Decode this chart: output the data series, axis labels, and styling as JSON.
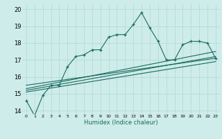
{
  "xlabel": "Humidex (Indice chaleur)",
  "ylabel": "",
  "xlim": [
    -0.5,
    23.5
  ],
  "ylim": [
    13.8,
    20.3
  ],
  "yticks": [
    14,
    15,
    16,
    17,
    18,
    19,
    20
  ],
  "xticks": [
    0,
    1,
    2,
    3,
    4,
    5,
    6,
    7,
    8,
    9,
    10,
    11,
    12,
    13,
    14,
    15,
    16,
    17,
    18,
    19,
    20,
    21,
    22,
    23
  ],
  "bg_color": "#ceecea",
  "grid_color": "#add8d5",
  "line_color": "#1a6b5e",
  "line1_x": [
    0,
    1,
    2,
    3,
    4,
    5,
    6,
    7,
    8,
    9,
    10,
    11,
    12,
    13,
    14,
    15,
    16,
    17,
    18,
    19,
    20,
    21,
    22,
    23
  ],
  "line1_y": [
    14.6,
    13.7,
    14.9,
    15.5,
    15.5,
    16.6,
    17.2,
    17.3,
    17.6,
    17.6,
    18.35,
    18.5,
    18.5,
    19.1,
    19.8,
    18.9,
    18.1,
    17.0,
    17.0,
    17.9,
    18.1,
    18.1,
    18.0,
    17.1
  ],
  "line2_x": [
    0,
    23
  ],
  "line2_y": [
    15.1,
    16.9
  ],
  "line3_x": [
    0,
    23
  ],
  "line3_y": [
    15.2,
    17.2
  ],
  "line4_x": [
    0,
    23
  ],
  "line4_y": [
    15.3,
    17.5
  ],
  "line5_x": [
    0,
    23
  ],
  "line5_y": [
    15.5,
    17.1
  ]
}
